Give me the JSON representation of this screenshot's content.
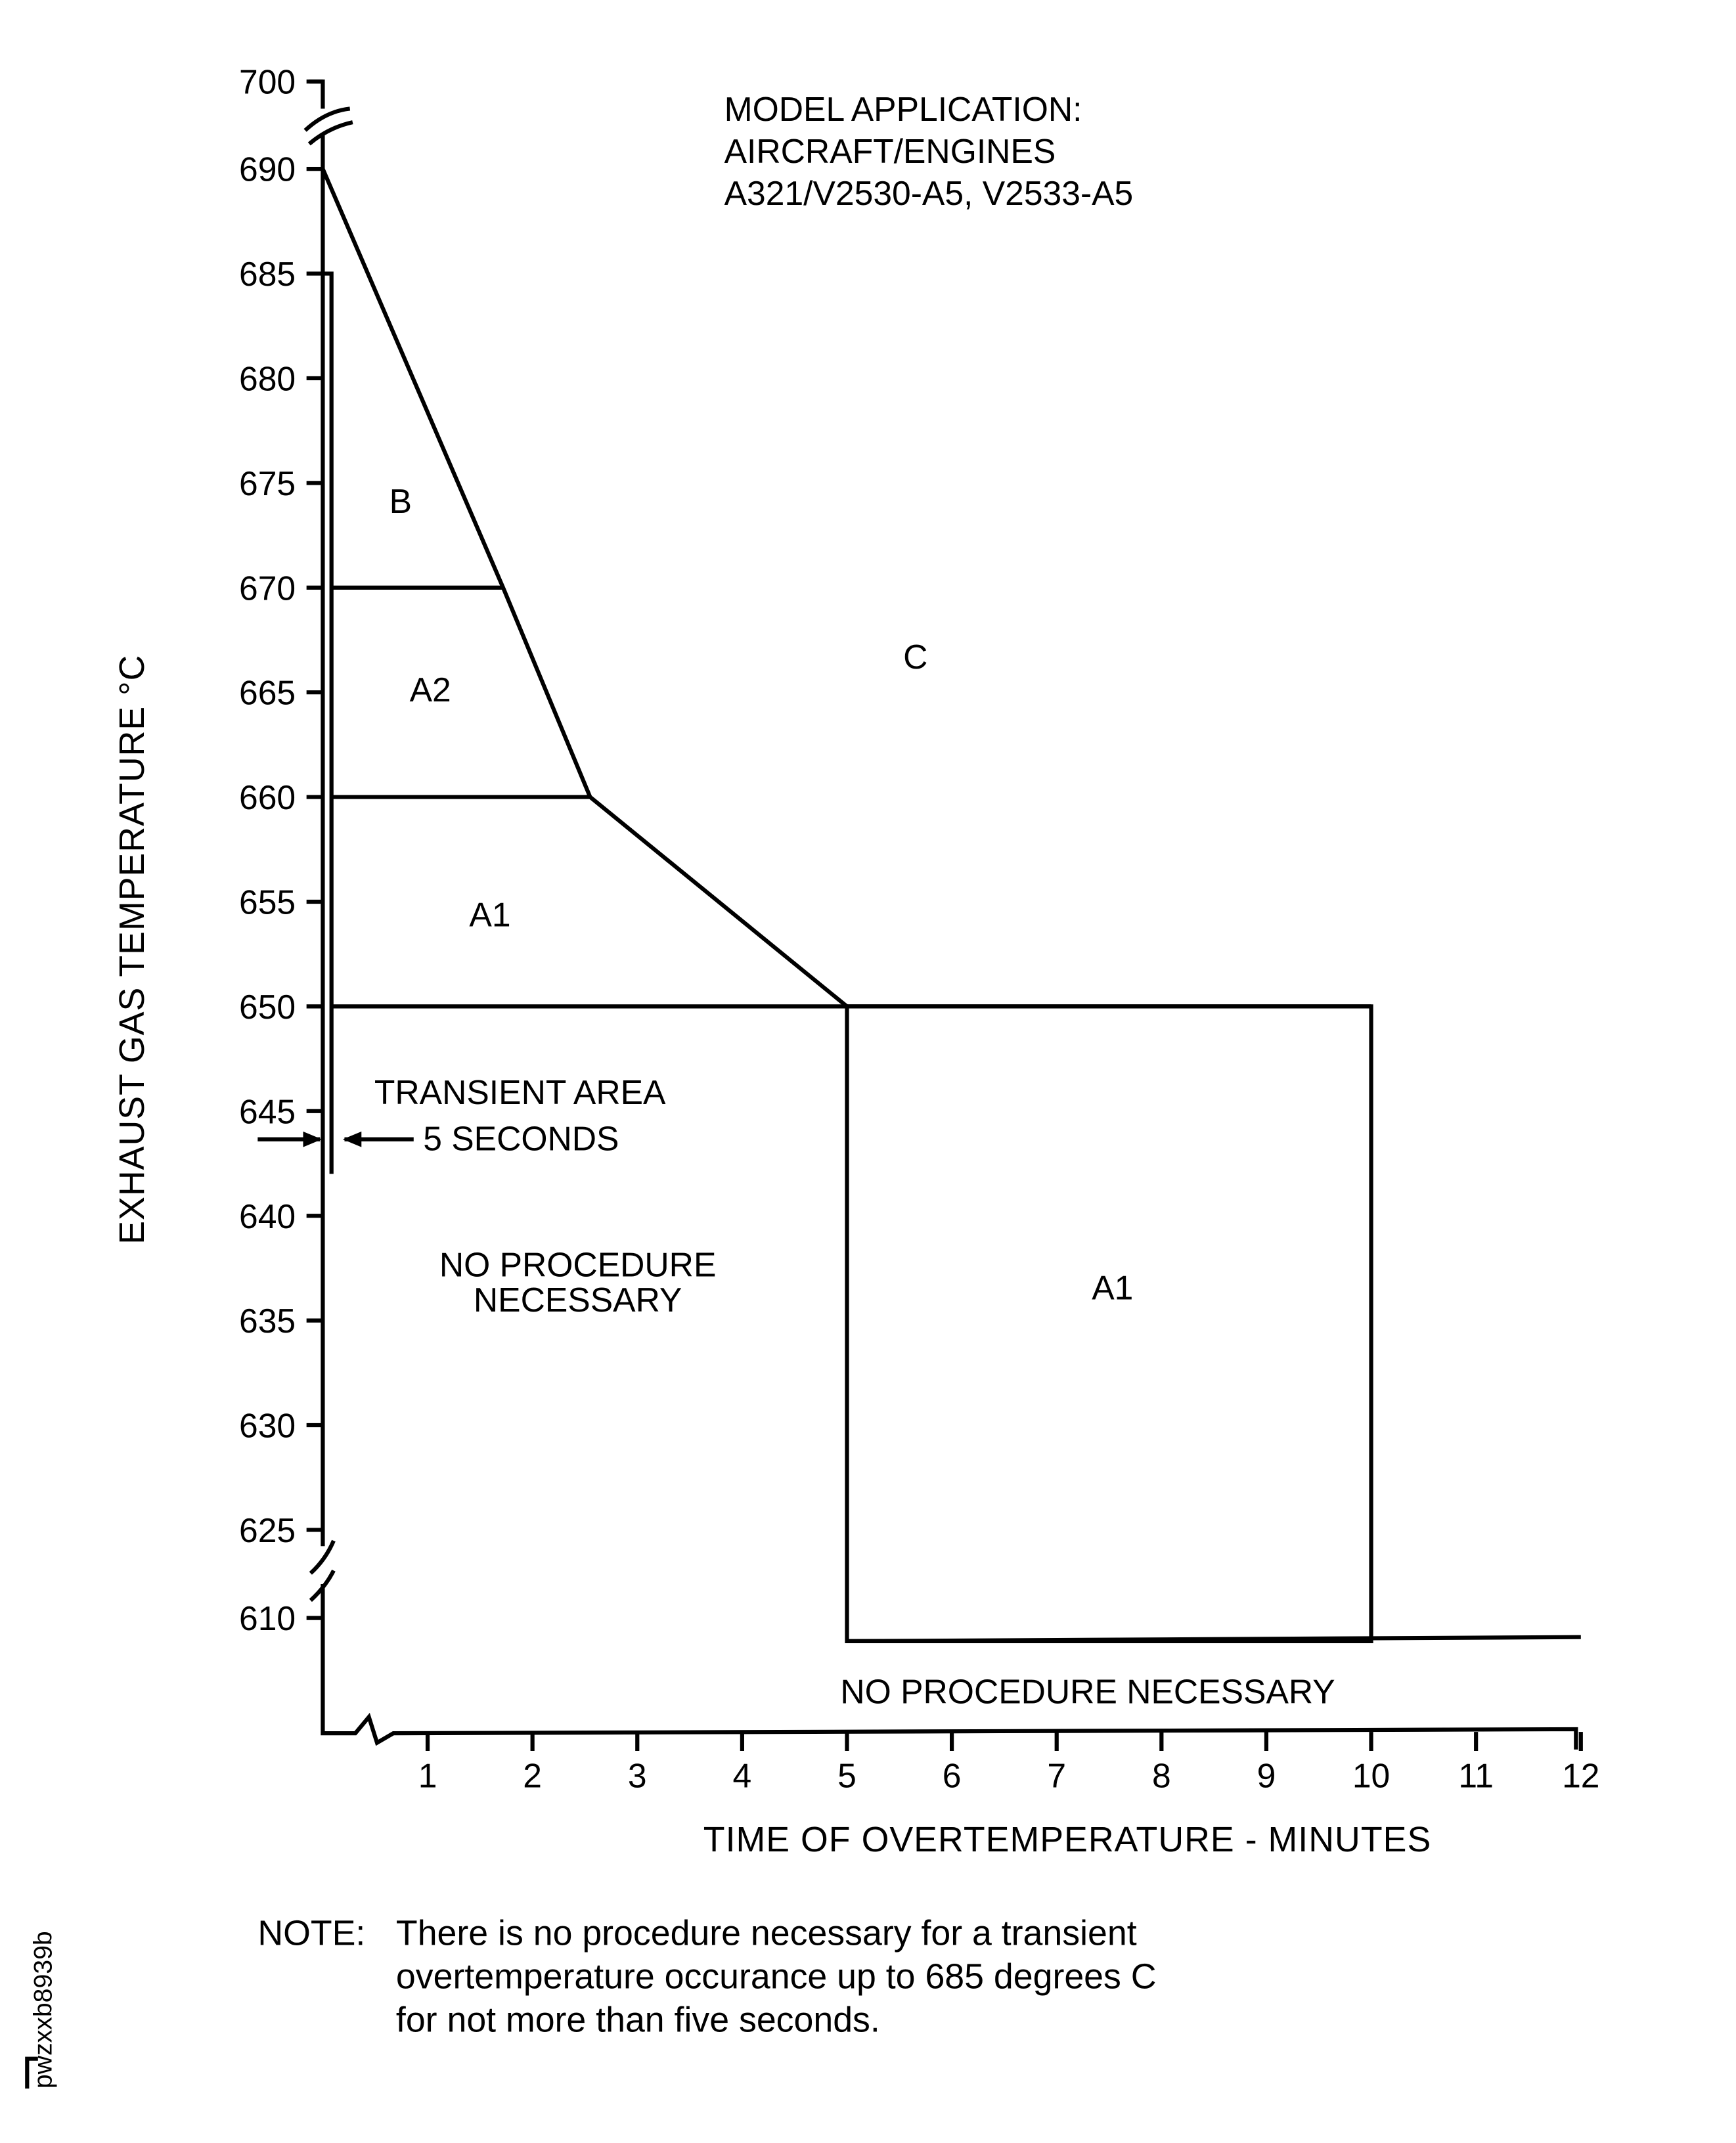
{
  "chart_data": {
    "type": "line",
    "xlabel": "TIME OF OVERTEMPERATURE - MINUTES",
    "ylabel": "EXHAUST GAS TEMPERATURE  °C",
    "x_ticks": [
      1,
      2,
      3,
      4,
      5,
      6,
      7,
      8,
      9,
      10,
      11,
      12
    ],
    "y_ticks": [
      700,
      690,
      685,
      680,
      675,
      670,
      665,
      660,
      655,
      650,
      645,
      640,
      635,
      630,
      625,
      610
    ],
    "xlim": [
      0,
      12
    ],
    "ylim": [
      610,
      700
    ],
    "axis_breaks": {
      "y": [
        [
          625,
          610
        ],
        [
          690,
          700
        ]
      ],
      "x": [
        0,
        1
      ]
    },
    "grid": false,
    "limit_curve": {
      "x": [
        0,
        1.72,
        2.55,
        5
      ],
      "y": [
        690,
        670,
        660,
        650
      ]
    },
    "transient_limit": {
      "x": 0.083,
      "y_from": 642,
      "y_to": 685
    },
    "zone_lines": [
      {
        "y": 670,
        "x_from": 0.083,
        "x_to": 1.72
      },
      {
        "y": 660,
        "x_from": 0.083,
        "x_to": 2.55
      },
      {
        "y": 650,
        "x_from": 0.083,
        "x_to": 10
      }
    ],
    "a1_box": {
      "x_from": 5,
      "x_to": 10,
      "y_top": 650,
      "y_bottom": 606
    },
    "lower_line": {
      "x_from": 5,
      "x_to": 12,
      "y": 606
    },
    "model_application": [
      "MODEL APPLICATION:",
      "AIRCRAFT/ENGINES",
      "A321/V2530-A5, V2533-A5"
    ],
    "region_labels": {
      "b": "B",
      "a2": "A2",
      "a1_upper": "A1",
      "c": "C",
      "a1_box": "A1",
      "transient_area": "TRANSIENT AREA",
      "five_seconds": "5 SECONDS",
      "no_proc_left_1": "NO PROCEDURE",
      "no_proc_left_2": "NECESSARY",
      "no_proc_bottom": "NO PROCEDURE NECESSARY"
    }
  },
  "note": {
    "label": "NOTE:",
    "lines": [
      "There is no procedure necessary for a transient",
      "overtemperature occurance up to 685 degrees C",
      "for not more than five seconds."
    ]
  },
  "figure_id": "pwzxxb8939b"
}
